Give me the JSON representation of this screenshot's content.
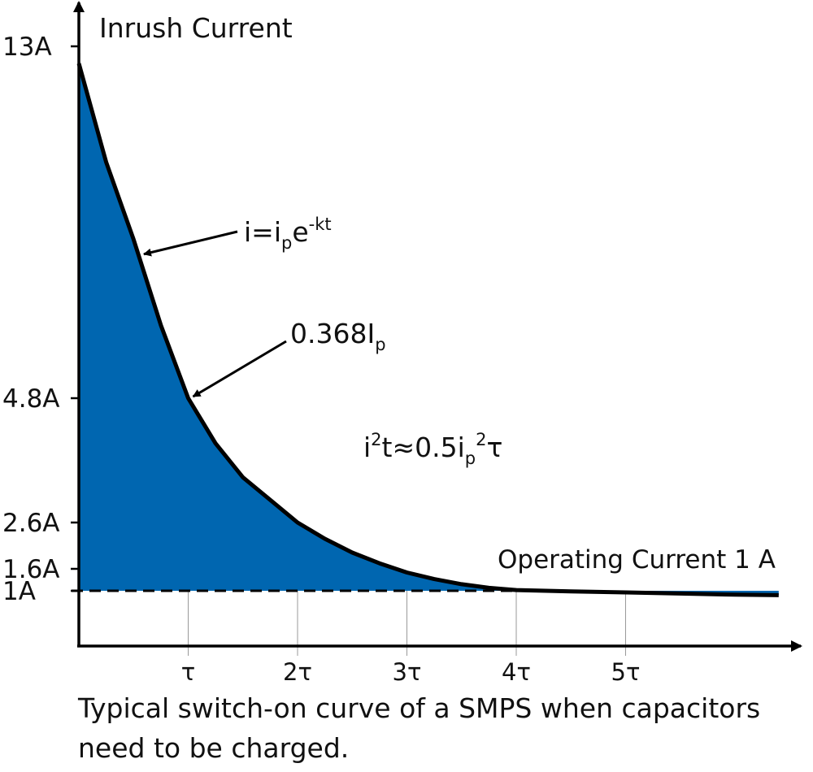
{
  "chart_data": {
    "type": "area",
    "title": "",
    "ylabel": "Inrush Current",
    "xlabel": "",
    "grid": true,
    "colors": {
      "fill": "#0066b0",
      "curve": "#000000",
      "grid": "#999999"
    },
    "x_ticks": [
      "τ",
      "2τ",
      "3τ",
      "4τ",
      "5τ"
    ],
    "x_tick_values": [
      1,
      2,
      3,
      4,
      5
    ],
    "y_ticks": [
      {
        "label": "13A",
        "value": 13
      },
      {
        "label": "4.8A",
        "value": 4.8
      },
      {
        "label": "2.6A",
        "value": 2.6
      },
      {
        "label": "1.6A",
        "value": 1.6
      },
      {
        "label": "1A",
        "value": 1
      }
    ],
    "series": [
      {
        "x": [
          0,
          0.25,
          0.5,
          0.75,
          1,
          1.25,
          1.5,
          1.75,
          2,
          2.25,
          2.5,
          2.75,
          3,
          3.25,
          3.5,
          3.75,
          4,
          4.5,
          5,
          5.5,
          6,
          6.4
        ],
        "y": [
          12.6,
          10.3,
          8.5,
          6.5,
          4.8,
          4.0,
          3.4,
          3.0,
          2.6,
          2.25,
          1.95,
          1.72,
          1.5,
          1.32,
          1.18,
          1.08,
          1.02,
          0.99,
          0.97,
          0.95,
          0.93,
          0.92
        ]
      }
    ],
    "baseline": {
      "label": "Operating Current 1 A",
      "value": 1
    },
    "annotations": {
      "formula_curve": {
        "base": "i=i",
        "sub": "p",
        "mid": "e",
        "sup": "-kt",
        "points_to_x": 0.55
      },
      "formula_point": {
        "base": "0.368I",
        "sub": "p",
        "points_to_x": 1
      },
      "formula_energy": {
        "a": "i",
        "a_sup": "2",
        "b": "t≈0.5i",
        "b_sub": "p",
        "b_sup": "2",
        "c": "τ"
      }
    },
    "caption_lines": [
      "Typical switch-on curve of a SMPS when capacitors",
      "need to be charged."
    ]
  }
}
